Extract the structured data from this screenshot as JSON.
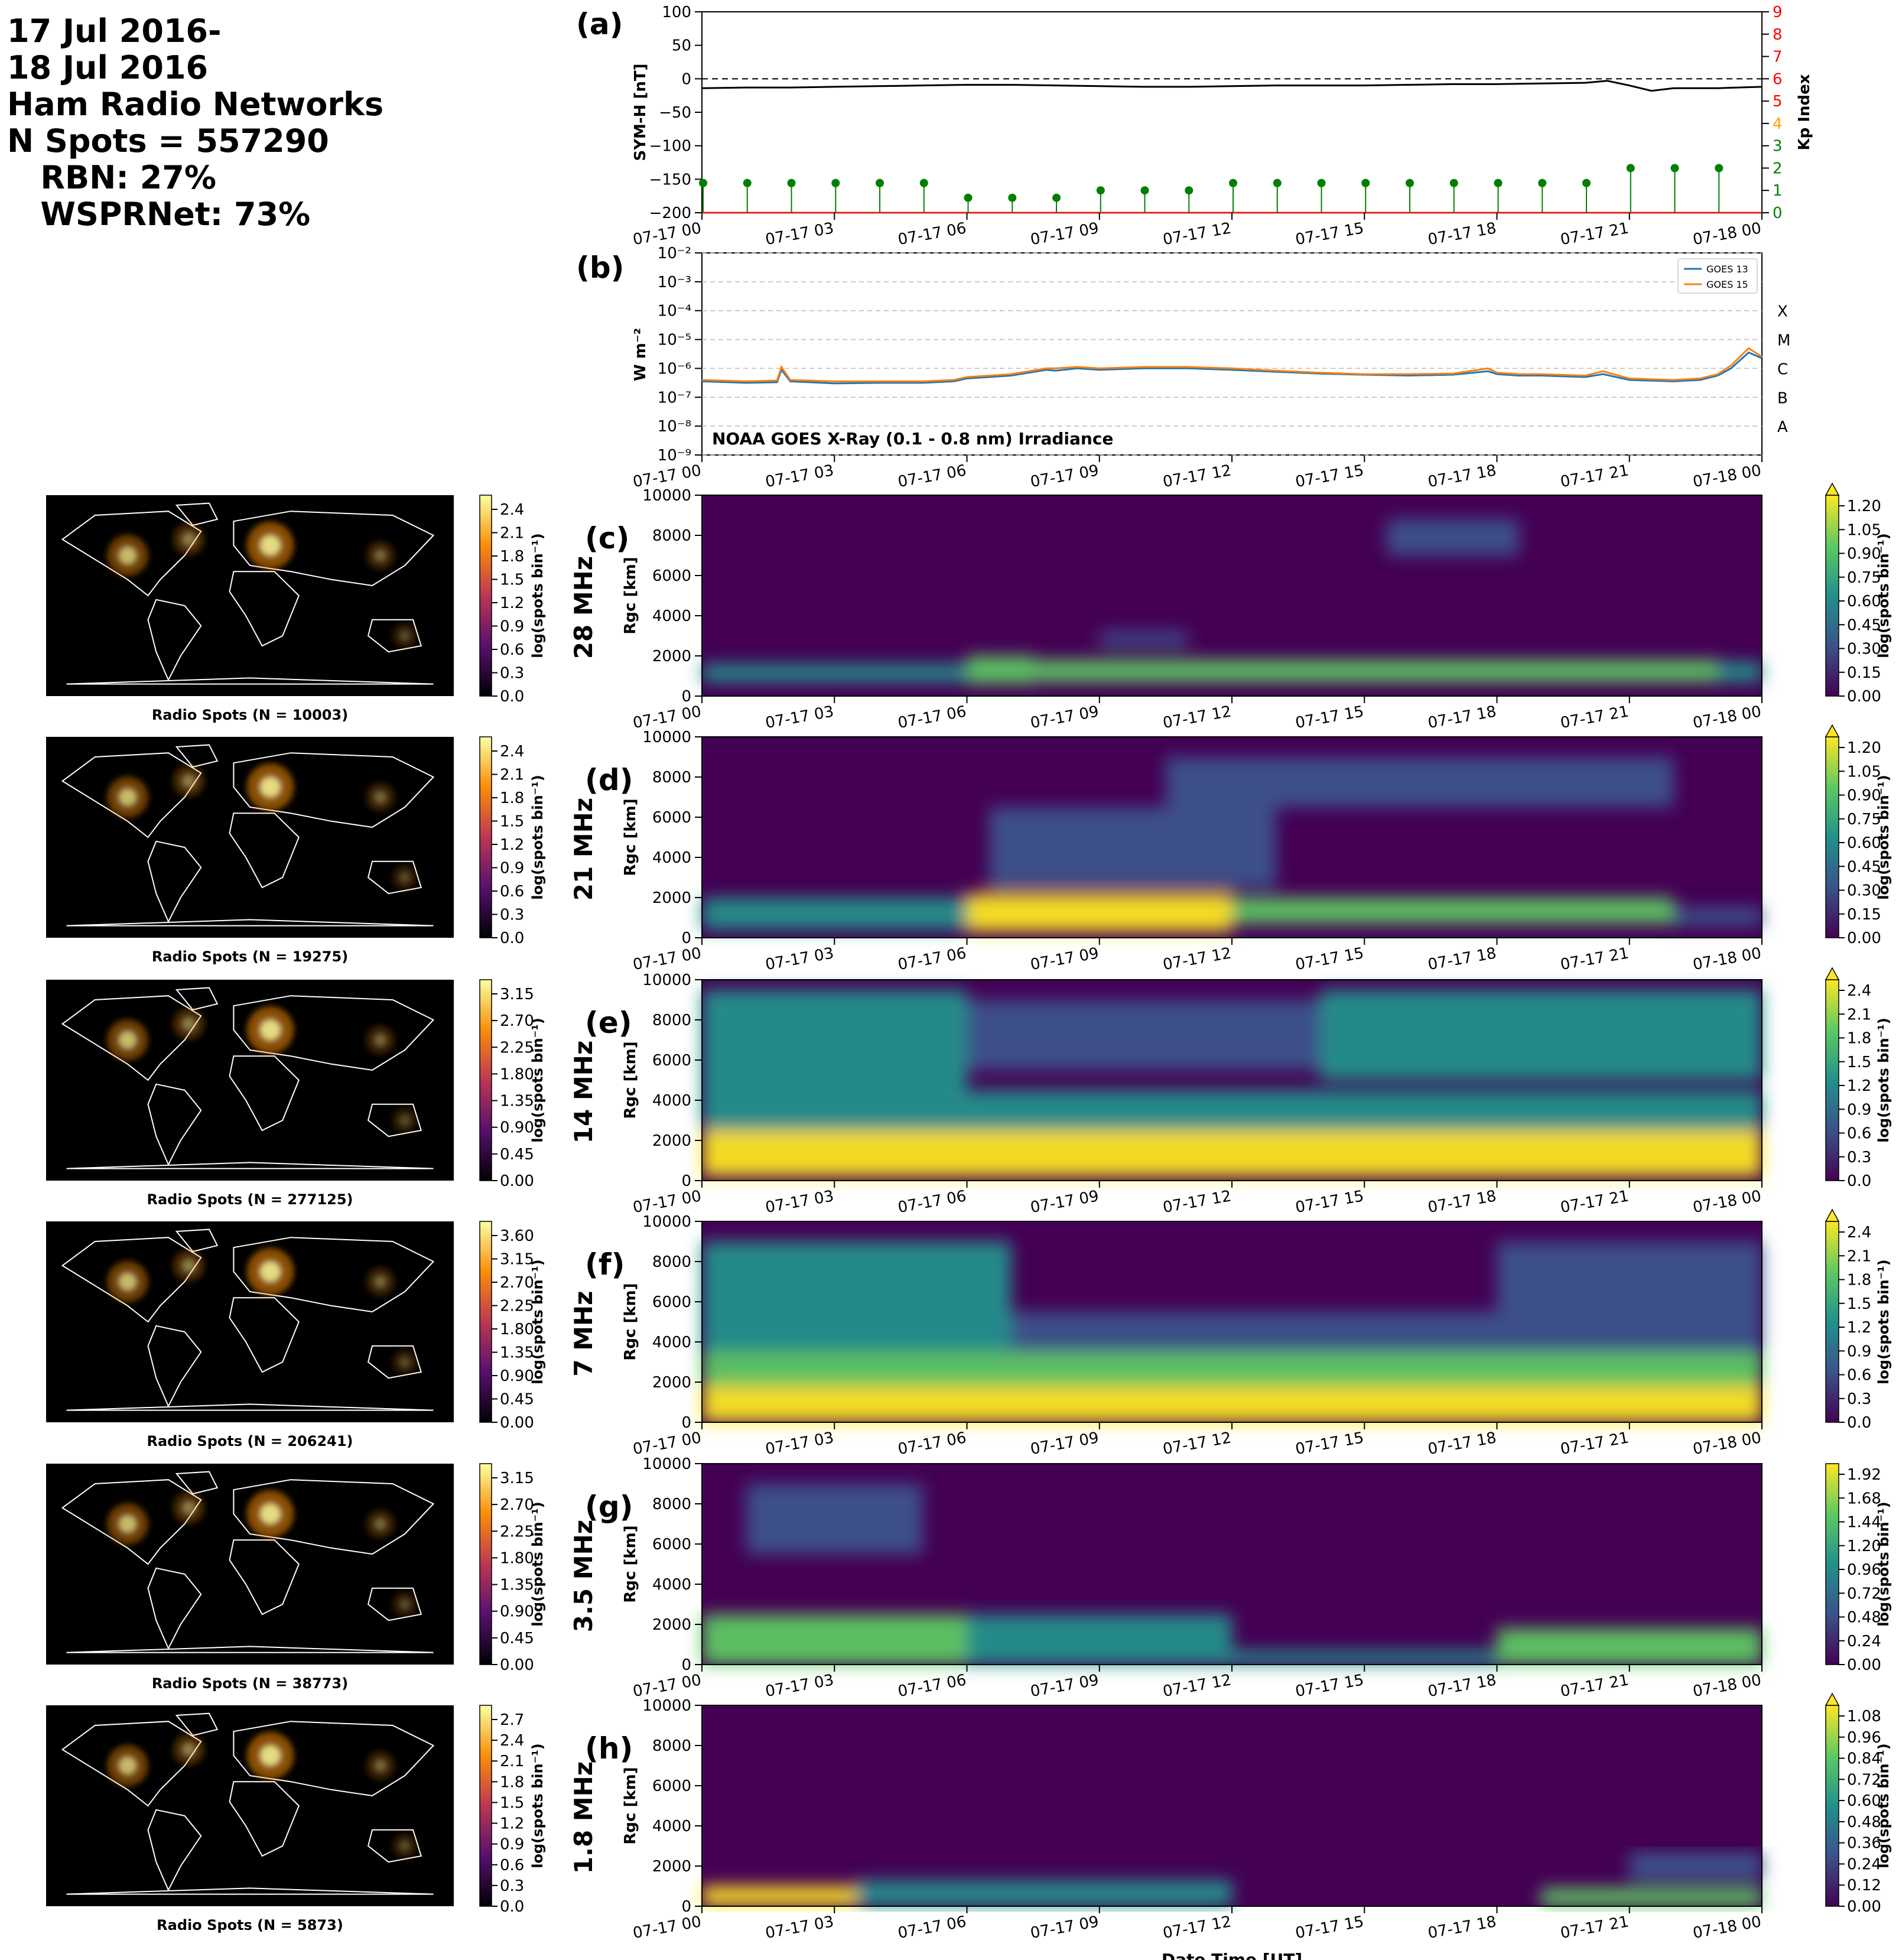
{
  "header": {
    "lines": [
      "17 Jul 2016-",
      "18 Jul 2016",
      "Ham Radio Networks",
      "N Spots = 557290",
      "   RBN: 27%",
      "   WSPRNet: 73%"
    ]
  },
  "colors": {
    "symh_line": "#000000",
    "kp_stem": "#008000",
    "goes13": "#1f77b4",
    "goes15": "#ff7f0e",
    "map_background": "#000000",
    "coastline": "#ffffff",
    "kp_tick_colors": [
      "#008000",
      "#008000",
      "#008000",
      "#008000",
      "#ffa500",
      "#ff0000",
      "#ff0000",
      "#ff0000",
      "#ff0000",
      "#ff0000"
    ]
  },
  "time_axis": {
    "ticks": [
      "07-17 00",
      "07-17 03",
      "07-17 06",
      "07-17 09",
      "07-17 12",
      "07-17 15",
      "07-17 18",
      "07-17 21",
      "07-18 00"
    ],
    "xlabel": "Date Time [UT]"
  },
  "chart_data": [
    {
      "panel": "(a)",
      "type": "line",
      "ylabel": "SYM-H [nT]",
      "ylim": [
        -200,
        100
      ],
      "yticks": [
        "100",
        "50",
        "0",
        "−50",
        "−100",
        "−150",
        "−200"
      ],
      "x_hours": [
        0,
        1,
        2,
        3,
        4,
        5,
        6,
        7,
        8,
        9,
        10,
        11,
        12,
        13,
        14,
        15,
        16,
        17,
        18,
        19,
        20,
        20.5,
        21,
        21.5,
        22,
        23,
        24
      ],
      "symh": [
        -14,
        -13,
        -13,
        -12,
        -11,
        -10,
        -9,
        -9,
        -10,
        -11,
        -12,
        -12,
        -11,
        -10,
        -10,
        -10,
        -9,
        -8,
        -8,
        -7,
        -6,
        -3,
        -10,
        -18,
        -14,
        -14,
        -12
      ],
      "zero_line": 0,
      "right_axis": {
        "label": "Kp Index",
        "ylim": [
          0,
          9
        ],
        "ticks": [
          "0",
          "1",
          "2",
          "3",
          "4",
          "5",
          "6",
          "7",
          "8",
          "9"
        ],
        "kp_hours": [
          0,
          1,
          2,
          3,
          4,
          5,
          6,
          7,
          8,
          9,
          10,
          11,
          12,
          13,
          14,
          15,
          16,
          17,
          18,
          19,
          20,
          21,
          22,
          23
        ],
        "kp_values": [
          1.33,
          1.33,
          1.33,
          1.33,
          1.33,
          1.33,
          0.67,
          0.67,
          0.67,
          1.0,
          1.0,
          1.0,
          1.33,
          1.33,
          1.33,
          1.33,
          1.33,
          1.33,
          1.33,
          1.33,
          1.33,
          2.0,
          2.0,
          2.0
        ]
      }
    },
    {
      "panel": "(b)",
      "type": "line",
      "ylabel": "W m⁻²",
      "yscale": "log",
      "ylim": [
        1e-09,
        0.01
      ],
      "yticks": [
        "10⁻²",
        "10⁻³",
        "10⁻⁴",
        "10⁻⁵",
        "10⁻⁶",
        "10⁻⁷",
        "10⁻⁸",
        "10⁻⁹"
      ],
      "flare_classes": [
        "X",
        "M",
        "C",
        "B",
        "A"
      ],
      "annotation": "NOAA GOES X-Ray (0.1 - 0.8 nm) Irradiance",
      "legend": [
        "GOES 13",
        "GOES 15"
      ],
      "x_hours": [
        0,
        1,
        1.7,
        1.8,
        2,
        3,
        4,
        5,
        5.7,
        6,
        7,
        7.8,
        8,
        8.5,
        9,
        10,
        11,
        12,
        13,
        14,
        15,
        16,
        17,
        17.8,
        18,
        18.5,
        19,
        20,
        20.4,
        21,
        22,
        22.6,
        23,
        23.3,
        23.7,
        24
      ],
      "series": [
        {
          "name": "GOES 13",
          "log10": [
            -6.45,
            -6.5,
            -6.48,
            -6.05,
            -6.45,
            -6.52,
            -6.5,
            -6.5,
            -6.45,
            -6.35,
            -6.25,
            -6.05,
            -6.08,
            -6.0,
            -6.05,
            -6.0,
            -6.0,
            -6.05,
            -6.12,
            -6.18,
            -6.22,
            -6.25,
            -6.22,
            -6.1,
            -6.2,
            -6.25,
            -6.25,
            -6.3,
            -6.2,
            -6.4,
            -6.45,
            -6.4,
            -6.25,
            -6.0,
            -5.45,
            -5.65
          ]
        },
        {
          "name": "GOES 15",
          "log10": [
            -6.4,
            -6.45,
            -6.42,
            -5.95,
            -6.4,
            -6.45,
            -6.45,
            -6.45,
            -6.4,
            -6.3,
            -6.2,
            -6.0,
            -6.0,
            -5.95,
            -6.0,
            -5.95,
            -5.95,
            -6.0,
            -6.08,
            -6.15,
            -6.2,
            -6.2,
            -6.18,
            -6.0,
            -6.15,
            -6.2,
            -6.2,
            -6.25,
            -6.1,
            -6.35,
            -6.4,
            -6.35,
            -6.2,
            -5.9,
            -5.3,
            -5.6
          ]
        }
      ]
    },
    {
      "panel": "(c)",
      "type": "heatmap",
      "band": "28 MHz",
      "ylabel": "Rgc [km]",
      "ylim": [
        0,
        10000
      ],
      "yticks": [
        "10000",
        "8000",
        "6000",
        "4000",
        "2000",
        "0"
      ],
      "cbar_label": "log(spots bin⁻¹)",
      "cbar_ticks": [
        "1.20",
        "1.05",
        "0.90",
        "0.75",
        "0.60",
        "0.45",
        "0.30",
        "0.15",
        "0.00"
      ],
      "cbar_extend": true,
      "map_caption": "Radio Spots (N = 10003)",
      "map_cbar_ticks": [
        "2.4",
        "2.1",
        "1.8",
        "1.5",
        "1.2",
        "0.9",
        "0.6",
        "0.3",
        "0.0"
      ],
      "activity": [
        {
          "h0": 0,
          "h1": 6,
          "r0": 700,
          "r1": 1600,
          "v": 0.6
        },
        {
          "h0": 6,
          "h1": 7.5,
          "r0": 600,
          "r1": 2000,
          "v": 0.75
        },
        {
          "h0": 7.5,
          "h1": 23,
          "r0": 700,
          "r1": 1800,
          "v": 1.0
        },
        {
          "h0": 23,
          "h1": 24,
          "r0": 700,
          "r1": 1700,
          "v": 0.5
        },
        {
          "h0": 15.5,
          "h1": 18.5,
          "r0": 7000,
          "r1": 8800,
          "v": 0.35
        },
        {
          "h0": 9,
          "h1": 11,
          "r0": 2500,
          "r1": 3200,
          "v": 0.25
        }
      ]
    },
    {
      "panel": "(d)",
      "type": "heatmap",
      "band": "21 MHz",
      "ylabel": "Rgc [km]",
      "ylim": [
        0,
        10000
      ],
      "yticks": [
        "10000",
        "8000",
        "6000",
        "4000",
        "2000",
        "0"
      ],
      "cbar_label": "log(spots bin⁻¹)",
      "cbar_ticks": [
        "1.20",
        "1.05",
        "0.90",
        "0.75",
        "0.60",
        "0.45",
        "0.30",
        "0.15",
        "0.00"
      ],
      "cbar_extend": true,
      "map_caption": "Radio Spots (N = 19275)",
      "map_cbar_ticks": [
        "2.4",
        "2.1",
        "1.8",
        "1.5",
        "1.2",
        "0.9",
        "0.6",
        "0.3",
        "0.0"
      ],
      "activity": [
        {
          "h0": 0,
          "h1": 6,
          "r0": 400,
          "r1": 2000,
          "v": 0.55
        },
        {
          "h0": 6,
          "h1": 12,
          "r0": 300,
          "r1": 2200,
          "v": 1.1
        },
        {
          "h0": 12,
          "h1": 22,
          "r0": 700,
          "r1": 2000,
          "v": 0.8
        },
        {
          "h0": 6.5,
          "h1": 13,
          "r0": 2500,
          "r1": 6500,
          "v": 0.4
        },
        {
          "h0": 10.5,
          "h1": 22,
          "r0": 6500,
          "r1": 9000,
          "v": 0.3
        },
        {
          "h0": 22,
          "h1": 24,
          "r0": 600,
          "r1": 1500,
          "v": 0.3
        }
      ]
    },
    {
      "panel": "(e)",
      "type": "heatmap",
      "band": "14 MHz",
      "ylabel": "Rgc [km]",
      "ylim": [
        0,
        10000
      ],
      "yticks": [
        "10000",
        "8000",
        "6000",
        "4000",
        "2000",
        "0"
      ],
      "cbar_label": "log(spots bin⁻¹)",
      "cbar_ticks": [
        "2.4",
        "2.1",
        "1.8",
        "1.5",
        "1.2",
        "0.9",
        "0.6",
        "0.3",
        "0.0"
      ],
      "cbar_extend": true,
      "map_caption": "Radio Spots (N = 277125)",
      "map_cbar_ticks": [
        "3.15",
        "2.70",
        "2.25",
        "1.80",
        "1.35",
        "0.90",
        "0.45",
        "0.00"
      ],
      "activity": [
        {
          "h0": 0,
          "h1": 24,
          "r0": 200,
          "r1": 2500,
          "v": 2.1
        },
        {
          "h0": 0,
          "h1": 24,
          "r0": 2500,
          "r1": 4500,
          "v": 1.3
        },
        {
          "h0": 0,
          "h1": 6,
          "r0": 4500,
          "r1": 9500,
          "v": 1.1
        },
        {
          "h0": 14,
          "h1": 24,
          "r0": 5000,
          "r1": 9500,
          "v": 1.2
        },
        {
          "h0": 6,
          "h1": 14,
          "r0": 5500,
          "r1": 9000,
          "v": 0.7
        }
      ]
    },
    {
      "panel": "(f)",
      "type": "heatmap",
      "band": "7 MHz",
      "ylabel": "Rgc [km]",
      "ylim": [
        0,
        10000
      ],
      "yticks": [
        "10000",
        "8000",
        "6000",
        "4000",
        "2000",
        "0"
      ],
      "cbar_label": "log(spots bin⁻¹)",
      "cbar_ticks": [
        "2.4",
        "2.1",
        "1.8",
        "1.5",
        "1.2",
        "0.9",
        "0.6",
        "0.3",
        "0.0"
      ],
      "cbar_extend": true,
      "map_caption": "Radio Spots (N = 206241)",
      "map_cbar_ticks": [
        "3.60",
        "3.15",
        "2.70",
        "2.25",
        "1.80",
        "1.35",
        "0.90",
        "0.45",
        "0.00"
      ],
      "activity": [
        {
          "h0": 0,
          "h1": 24,
          "r0": 0,
          "r1": 1800,
          "v": 2.2
        },
        {
          "h0": 0,
          "h1": 24,
          "r0": 1800,
          "r1": 3500,
          "v": 1.5
        },
        {
          "h0": 0,
          "h1": 7,
          "r0": 3500,
          "r1": 9000,
          "v": 1.2
        },
        {
          "h0": 7,
          "h1": 24,
          "r0": 3500,
          "r1": 5500,
          "v": 0.7
        },
        {
          "h0": 18,
          "h1": 24,
          "r0": 5500,
          "r1": 9000,
          "v": 0.6
        }
      ]
    },
    {
      "panel": "(g)",
      "type": "heatmap",
      "band": "3.5 MHz",
      "ylabel": "Rgc [km]",
      "ylim": [
        0,
        10000
      ],
      "yticks": [
        "10000",
        "8000",
        "6000",
        "4000",
        "2000",
        "0"
      ],
      "cbar_label": "log(spots bin⁻¹)",
      "cbar_ticks": [
        "1.92",
        "1.68",
        "1.44",
        "1.20",
        "0.96",
        "0.72",
        "0.48",
        "0.24",
        "0.00"
      ],
      "cbar_extend": false,
      "map_caption": "Radio Spots (N = 38773)",
      "map_cbar_ticks": [
        "3.15",
        "2.70",
        "2.25",
        "1.80",
        "1.35",
        "0.90",
        "0.45",
        "0.00"
      ],
      "activity": [
        {
          "h0": 0,
          "h1": 6,
          "r0": 0,
          "r1": 2500,
          "v": 1.6
        },
        {
          "h0": 6,
          "h1": 12,
          "r0": 0,
          "r1": 2500,
          "v": 1.1
        },
        {
          "h0": 12,
          "h1": 18,
          "r0": 0,
          "r1": 700,
          "v": 0.9
        },
        {
          "h0": 18,
          "h1": 24,
          "r0": 0,
          "r1": 1800,
          "v": 1.3
        },
        {
          "h0": 1,
          "h1": 5,
          "r0": 5500,
          "r1": 9000,
          "v": 0.6
        }
      ]
    },
    {
      "panel": "(h)",
      "type": "heatmap",
      "band": "1.8 MHz",
      "ylabel": "Rgc [km]",
      "ylim": [
        0,
        10000
      ],
      "yticks": [
        "10000",
        "8000",
        "6000",
        "4000",
        "2000",
        "0"
      ],
      "cbar_label": "log(spots bin⁻¹)",
      "cbar_ticks": [
        "1.08",
        "0.96",
        "0.84",
        "0.72",
        "0.60",
        "0.48",
        "0.36",
        "0.24",
        "0.12",
        "0.00"
      ],
      "cbar_extend": true,
      "map_caption": "Radio Spots (N = 5873)",
      "map_cbar_ticks": [
        "2.7",
        "2.4",
        "2.1",
        "1.8",
        "1.5",
        "1.2",
        "0.9",
        "0.6",
        "0.3",
        "0.0"
      ],
      "activity": [
        {
          "h0": 0,
          "h1": 3.5,
          "r0": 0,
          "r1": 1000,
          "v": 1.0
        },
        {
          "h0": 3.5,
          "h1": 12,
          "r0": 0,
          "r1": 1300,
          "v": 0.55
        },
        {
          "h0": 19,
          "h1": 24,
          "r0": 0,
          "r1": 900,
          "v": 0.9
        },
        {
          "h0": 21,
          "h1": 24,
          "r0": 1300,
          "r1": 2700,
          "v": 0.35
        }
      ]
    }
  ]
}
